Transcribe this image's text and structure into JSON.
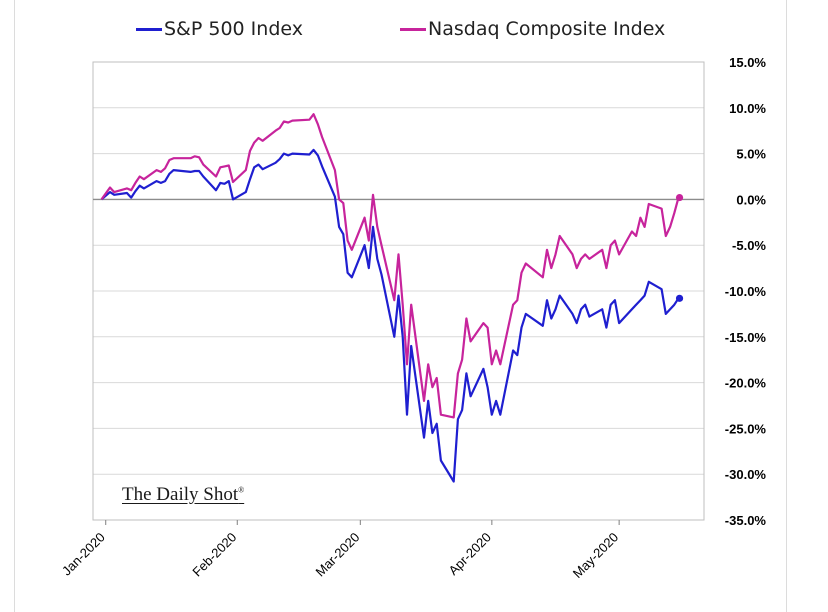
{
  "chart_data": {
    "type": "line",
    "title": "",
    "xlabel": "",
    "ylabel": "",
    "y_unit": "%",
    "ylim": [
      -35,
      15
    ],
    "yticks": [
      15,
      10,
      5,
      0,
      -5,
      -10,
      -15,
      -20,
      -25,
      -30,
      -35
    ],
    "ytick_labels": [
      "15.0%",
      "10.0%",
      "5.0%",
      "0.0%",
      "-5.0%",
      "-10.0%",
      "-15.0%",
      "-20.0%",
      "-25.0%",
      "-30.0%",
      "-35.0%"
    ],
    "xlim": [
      "2019-12-29",
      "2020-05-21"
    ],
    "xticks": [
      "2020-01-01",
      "2020-02-01",
      "2020-03-01",
      "2020-04-01",
      "2020-05-01"
    ],
    "xtick_labels": [
      "Jan-2020",
      "Feb-2020",
      "Mar-2020",
      "Apr-2020",
      "May-2020"
    ],
    "grid": "horizontal",
    "legend_position": "top",
    "series": [
      {
        "name": "S&P 500 Index",
        "color": "#1f1fd0",
        "x": [
          "2019-12-31",
          "2020-01-02",
          "2020-01-03",
          "2020-01-06",
          "2020-01-07",
          "2020-01-08",
          "2020-01-09",
          "2020-01-10",
          "2020-01-13",
          "2020-01-14",
          "2020-01-15",
          "2020-01-16",
          "2020-01-17",
          "2020-01-21",
          "2020-01-22",
          "2020-01-23",
          "2020-01-24",
          "2020-01-27",
          "2020-01-28",
          "2020-01-29",
          "2020-01-30",
          "2020-01-31",
          "2020-02-03",
          "2020-02-04",
          "2020-02-05",
          "2020-02-06",
          "2020-02-07",
          "2020-02-10",
          "2020-02-11",
          "2020-02-12",
          "2020-02-13",
          "2020-02-14",
          "2020-02-18",
          "2020-02-19",
          "2020-02-20",
          "2020-02-21",
          "2020-02-24",
          "2020-02-25",
          "2020-02-26",
          "2020-02-27",
          "2020-02-28",
          "2020-03-02",
          "2020-03-03",
          "2020-03-04",
          "2020-03-05",
          "2020-03-06",
          "2020-03-09",
          "2020-03-10",
          "2020-03-11",
          "2020-03-12",
          "2020-03-13",
          "2020-03-16",
          "2020-03-17",
          "2020-03-18",
          "2020-03-19",
          "2020-03-20",
          "2020-03-23",
          "2020-03-24",
          "2020-03-25",
          "2020-03-26",
          "2020-03-27",
          "2020-03-30",
          "2020-03-31",
          "2020-04-01",
          "2020-04-02",
          "2020-04-03",
          "2020-04-06",
          "2020-04-07",
          "2020-04-08",
          "2020-04-09",
          "2020-04-13",
          "2020-04-14",
          "2020-04-15",
          "2020-04-16",
          "2020-04-17",
          "2020-04-20",
          "2020-04-21",
          "2020-04-22",
          "2020-04-23",
          "2020-04-24",
          "2020-04-27",
          "2020-04-28",
          "2020-04-29",
          "2020-04-30",
          "2020-05-01",
          "2020-05-04",
          "2020-05-05",
          "2020-05-06",
          "2020-05-07",
          "2020-05-08",
          "2020-05-11",
          "2020-05-12",
          "2020-05-13",
          "2020-05-14",
          "2020-05-15"
        ],
        "values": [
          0.0,
          0.8,
          0.5,
          0.7,
          0.2,
          0.9,
          1.5,
          1.2,
          2.0,
          1.8,
          2.0,
          2.8,
          3.2,
          3.0,
          3.1,
          3.1,
          2.5,
          1.0,
          1.8,
          1.7,
          2.0,
          0.0,
          0.8,
          2.2,
          3.5,
          3.8,
          3.3,
          4.0,
          4.4,
          5.0,
          4.8,
          5.0,
          4.9,
          5.4,
          4.8,
          3.6,
          0.3,
          -3.0,
          -3.8,
          -8.0,
          -8.5,
          -5.0,
          -7.5,
          -3.0,
          -6.5,
          -8.2,
          -15.0,
          -10.5,
          -15.0,
          -23.5,
          -16.0,
          -26.0,
          -22.0,
          -25.5,
          -24.5,
          -28.5,
          -30.8,
          -24.0,
          -23.0,
          -19.0,
          -21.5,
          -18.5,
          -20.5,
          -23.5,
          -22.0,
          -23.5,
          -16.5,
          -17.0,
          -14.0,
          -12.5,
          -13.8,
          -11.0,
          -13.0,
          -12.0,
          -10.5,
          -12.5,
          -13.5,
          -12.0,
          -11.5,
          -12.8,
          -12.0,
          -14.0,
          -11.5,
          -11.0,
          -13.5,
          -12.0,
          -11.5,
          -11.0,
          -10.5,
          -9.0,
          -9.8,
          -12.5,
          -12.0,
          -11.5,
          -10.8
        ]
      },
      {
        "name": "Nasdaq Composite Index",
        "color": "#c7249c",
        "x": [
          "2019-12-31",
          "2020-01-02",
          "2020-01-03",
          "2020-01-06",
          "2020-01-07",
          "2020-01-08",
          "2020-01-09",
          "2020-01-10",
          "2020-01-13",
          "2020-01-14",
          "2020-01-15",
          "2020-01-16",
          "2020-01-17",
          "2020-01-21",
          "2020-01-22",
          "2020-01-23",
          "2020-01-24",
          "2020-01-27",
          "2020-01-28",
          "2020-01-29",
          "2020-01-30",
          "2020-01-31",
          "2020-02-03",
          "2020-02-04",
          "2020-02-05",
          "2020-02-06",
          "2020-02-07",
          "2020-02-10",
          "2020-02-11",
          "2020-02-12",
          "2020-02-13",
          "2020-02-14",
          "2020-02-18",
          "2020-02-19",
          "2020-02-20",
          "2020-02-21",
          "2020-02-24",
          "2020-02-25",
          "2020-02-26",
          "2020-02-27",
          "2020-02-28",
          "2020-03-02",
          "2020-03-03",
          "2020-03-04",
          "2020-03-05",
          "2020-03-06",
          "2020-03-09",
          "2020-03-10",
          "2020-03-11",
          "2020-03-12",
          "2020-03-13",
          "2020-03-16",
          "2020-03-17",
          "2020-03-18",
          "2020-03-19",
          "2020-03-20",
          "2020-03-23",
          "2020-03-24",
          "2020-03-25",
          "2020-03-26",
          "2020-03-27",
          "2020-03-30",
          "2020-03-31",
          "2020-04-01",
          "2020-04-02",
          "2020-04-03",
          "2020-04-06",
          "2020-04-07",
          "2020-04-08",
          "2020-04-09",
          "2020-04-13",
          "2020-04-14",
          "2020-04-15",
          "2020-04-16",
          "2020-04-17",
          "2020-04-20",
          "2020-04-21",
          "2020-04-22",
          "2020-04-23",
          "2020-04-24",
          "2020-04-27",
          "2020-04-28",
          "2020-04-29",
          "2020-04-30",
          "2020-05-01",
          "2020-05-04",
          "2020-05-05",
          "2020-05-06",
          "2020-05-07",
          "2020-05-08",
          "2020-05-11",
          "2020-05-12",
          "2020-05-13",
          "2020-05-14",
          "2020-05-15"
        ],
        "values": [
          0.0,
          1.3,
          0.8,
          1.2,
          1.0,
          1.8,
          2.5,
          2.2,
          3.2,
          3.0,
          3.4,
          4.3,
          4.5,
          4.5,
          4.7,
          4.6,
          3.8,
          2.5,
          3.5,
          3.6,
          3.7,
          1.9,
          3.2,
          5.3,
          6.2,
          6.7,
          6.4,
          7.5,
          7.8,
          8.5,
          8.4,
          8.6,
          8.7,
          9.3,
          8.2,
          6.8,
          3.2,
          0.0,
          -0.4,
          -4.5,
          -5.5,
          -2.0,
          -4.5,
          0.5,
          -3.0,
          -5.0,
          -11.0,
          -6.0,
          -11.5,
          -18.0,
          -11.5,
          -22.0,
          -18.0,
          -20.5,
          -19.5,
          -23.5,
          -23.8,
          -19.0,
          -17.5,
          -13.0,
          -15.5,
          -13.5,
          -14.0,
          -18.0,
          -16.5,
          -18.0,
          -11.5,
          -11.0,
          -8.0,
          -7.0,
          -8.5,
          -5.5,
          -7.5,
          -6.0,
          -4.0,
          -6.0,
          -7.5,
          -6.5,
          -6.0,
          -6.5,
          -5.5,
          -7.5,
          -5.0,
          -4.5,
          -6.0,
          -3.5,
          -4.0,
          -2.0,
          -3.0,
          -0.5,
          -1.0,
          -4.0,
          -3.0,
          -1.5,
          0.2
        ]
      }
    ]
  },
  "legend": {
    "items": [
      {
        "label": "S&P 500 Index",
        "color": "#1f1fd0"
      },
      {
        "label": "Nasdaq Composite Index",
        "color": "#c7249c"
      }
    ]
  },
  "brand": {
    "text": "The Daily Shot",
    "mark": "®"
  }
}
